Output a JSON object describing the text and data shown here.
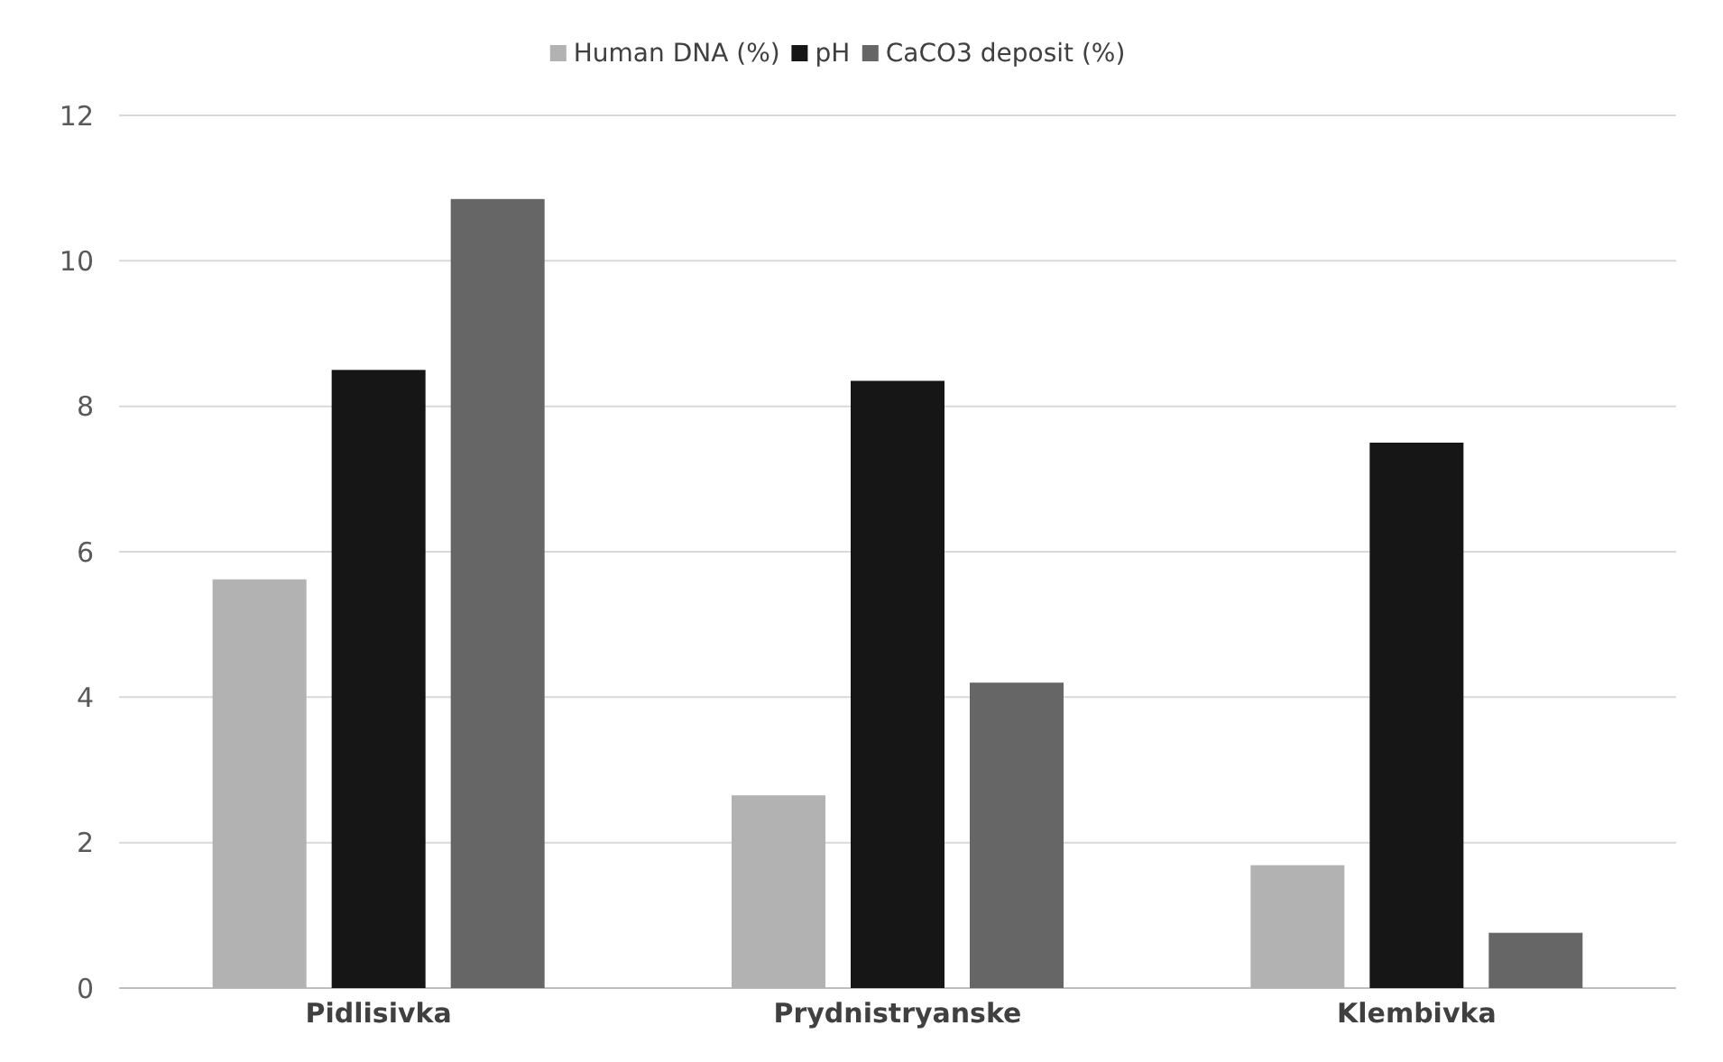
{
  "chart_data": {
    "type": "bar",
    "categories": [
      "Pidlisivka",
      "Prydnistryanske",
      "Klembivka"
    ],
    "series": [
      {
        "name": "Human DNA (%)",
        "color": "#b2b2b2",
        "values": [
          5.62,
          2.65,
          1.69
        ]
      },
      {
        "name": "pH",
        "color": "#161616",
        "values": [
          8.5,
          8.35,
          7.5
        ]
      },
      {
        "name": "CaCO3 deposit (%)",
        "color": "#666666",
        "values": [
          10.85,
          4.2,
          0.76
        ]
      }
    ],
    "ylim": [
      0,
      12
    ],
    "yticks": [
      0,
      2,
      4,
      6,
      8,
      10,
      12
    ],
    "grid": "y",
    "legend": "top"
  }
}
